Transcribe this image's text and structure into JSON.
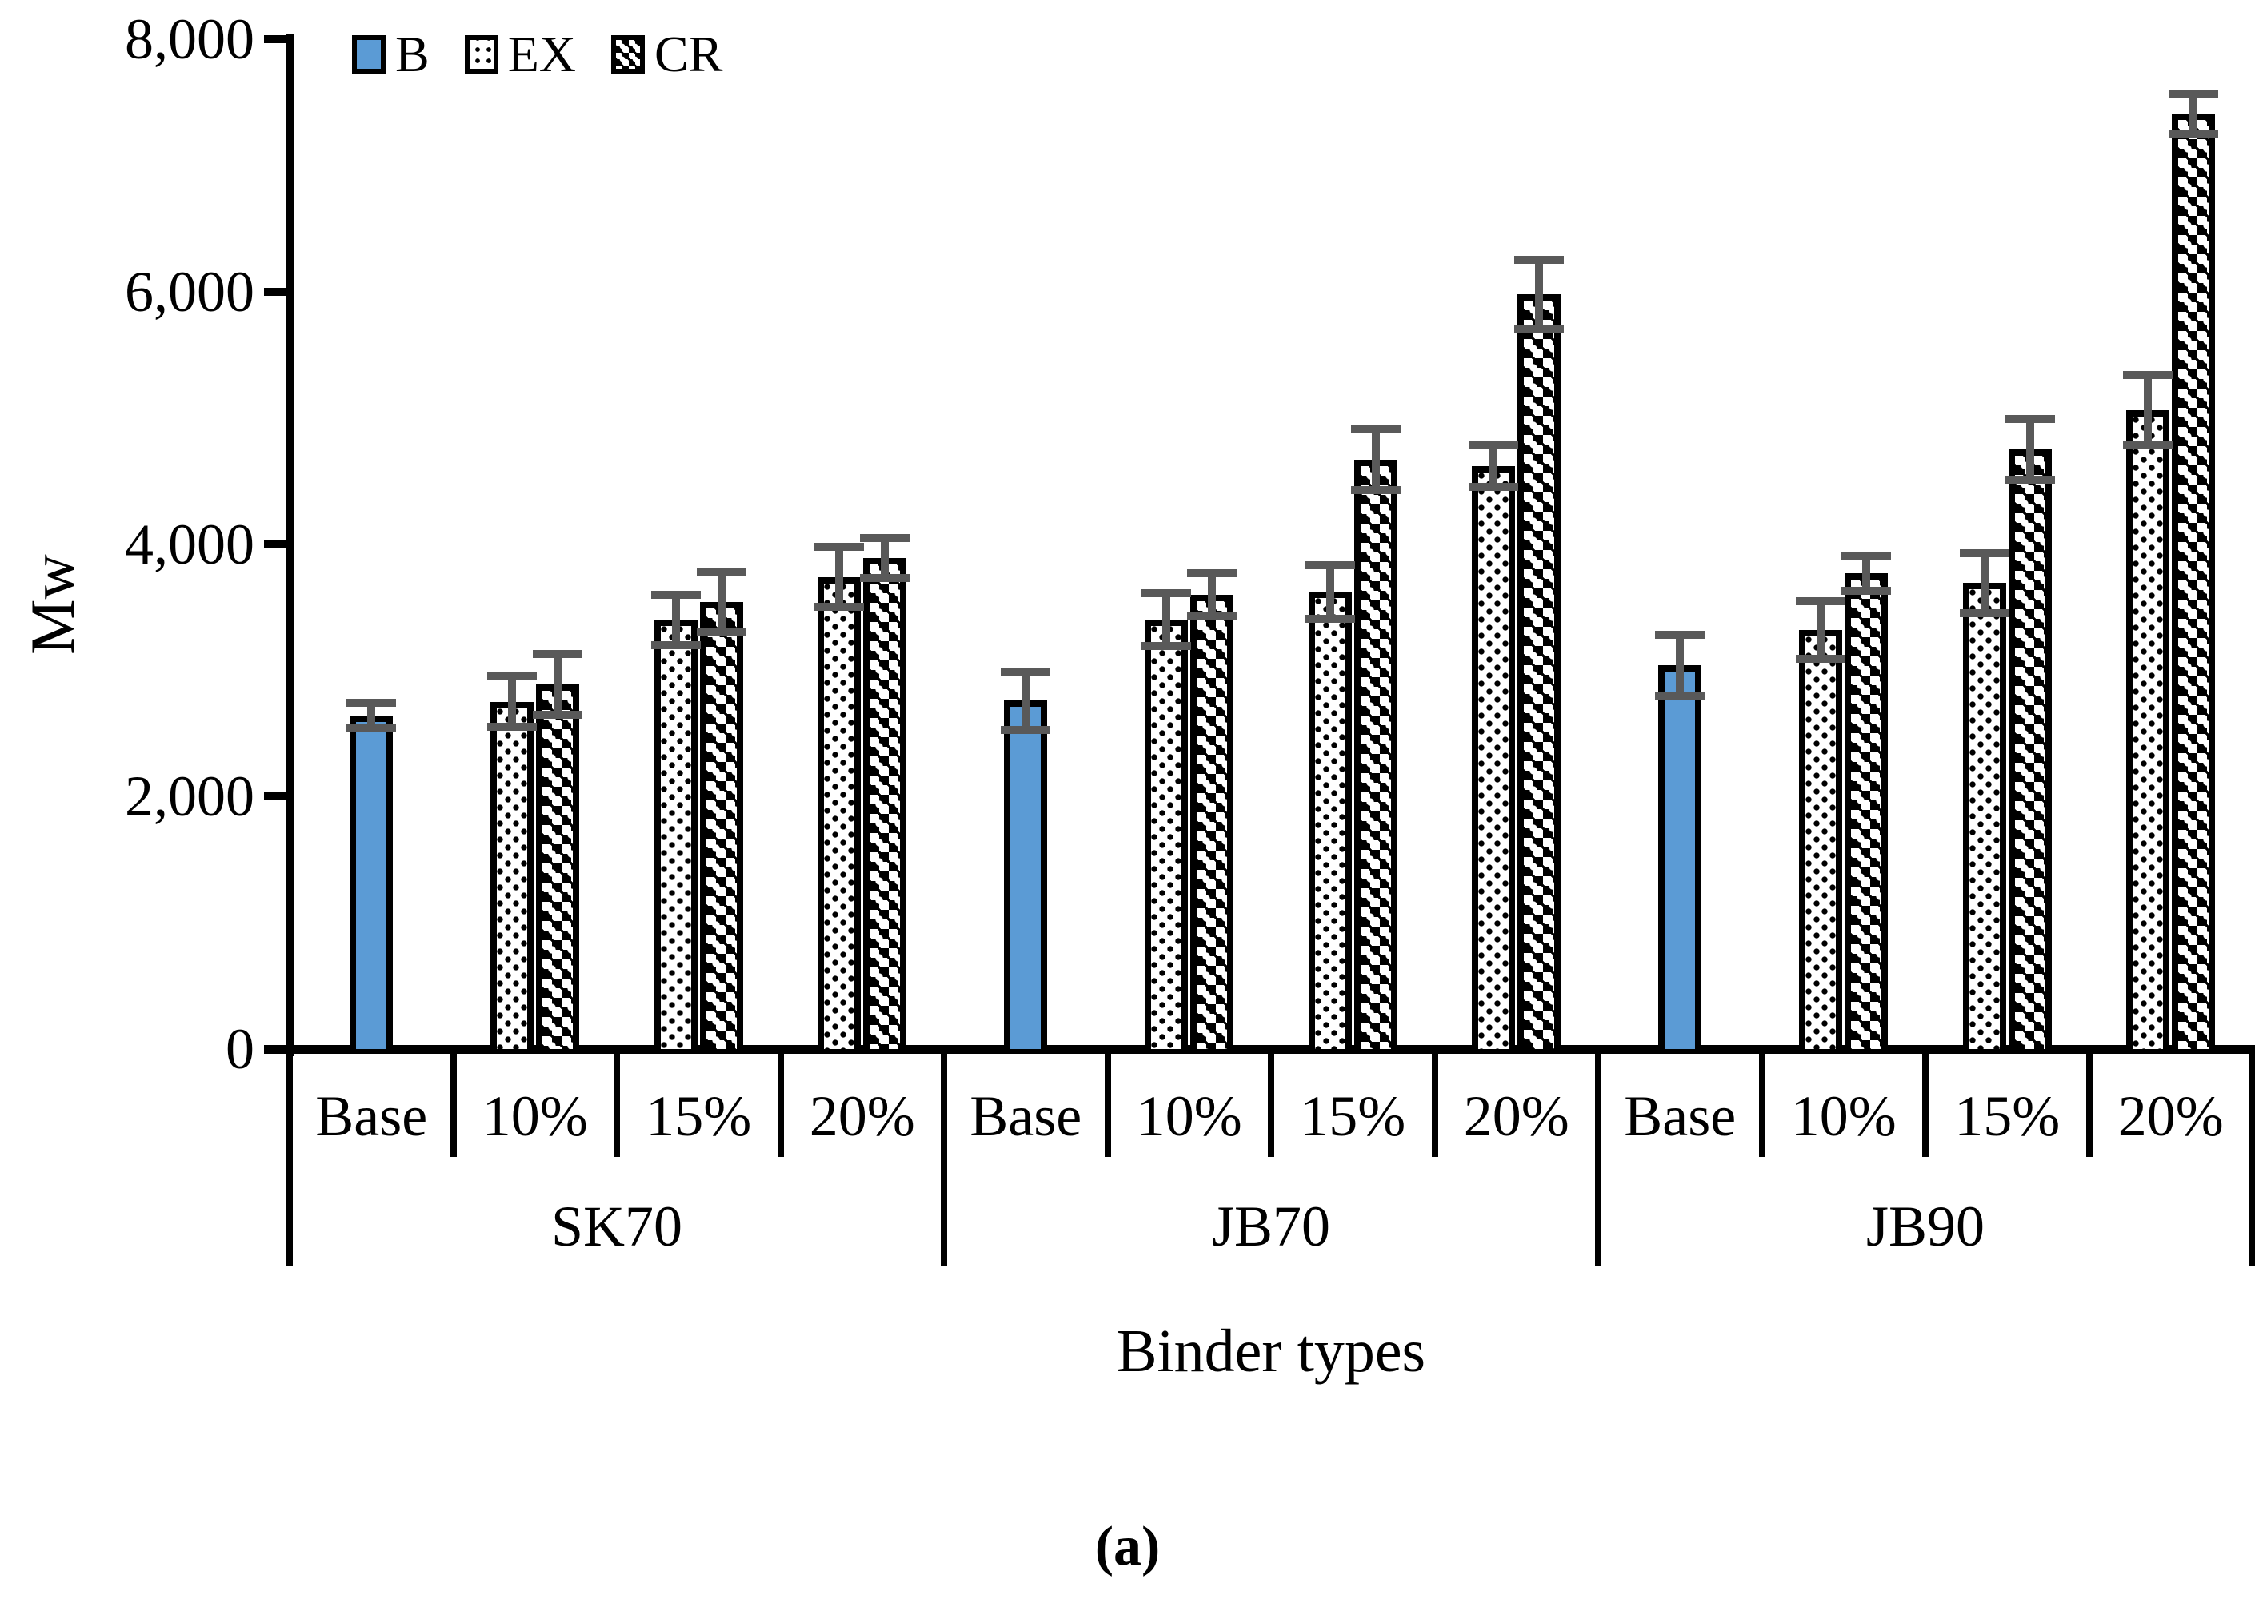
{
  "figure": {
    "caption": "(a)"
  },
  "chart_data": {
    "type": "bar",
    "title": "",
    "ylabel": "Mw",
    "xlabel": "Binder types",
    "ylim": [
      0,
      8000
    ],
    "yticks": [
      0,
      2000,
      4000,
      6000,
      8000
    ],
    "ytick_labels": [
      "0",
      "2,000",
      "4,000",
      "6,000",
      "8,000"
    ],
    "grid": false,
    "legend_position": "top-left",
    "error_bar_color": "#595959",
    "bar_blue": "#5B9BD5",
    "series": [
      {
        "name": "B",
        "style": "b-solid"
      },
      {
        "name": "EX",
        "style": "b-dots"
      },
      {
        "name": "CR",
        "style": "b-checker"
      }
    ],
    "groups": [
      {
        "label": "SK70",
        "categories": [
          {
            "label": "Base",
            "bars": [
              {
                "series": "B",
                "value": 2640,
                "error": 100
              }
            ]
          },
          {
            "label": "10%",
            "bars": [
              {
                "series": "EX",
                "value": 2750,
                "error": 200
              },
              {
                "series": "CR",
                "value": 2890,
                "error": 240
              }
            ]
          },
          {
            "label": "15%",
            "bars": [
              {
                "series": "EX",
                "value": 3400,
                "error": 200
              },
              {
                "series": "CR",
                "value": 3540,
                "error": 240
              }
            ]
          },
          {
            "label": "20%",
            "bars": [
              {
                "series": "EX",
                "value": 3740,
                "error": 240
              },
              {
                "series": "CR",
                "value": 3890,
                "error": 160
              }
            ]
          }
        ]
      },
      {
        "label": "JB70",
        "categories": [
          {
            "label": "Base",
            "bars": [
              {
                "series": "B",
                "value": 2760,
                "error": 230
              }
            ]
          },
          {
            "label": "10%",
            "bars": [
              {
                "series": "EX",
                "value": 3400,
                "error": 210
              },
              {
                "series": "CR",
                "value": 3600,
                "error": 170
              }
            ]
          },
          {
            "label": "15%",
            "bars": [
              {
                "series": "EX",
                "value": 3620,
                "error": 210
              },
              {
                "series": "CR",
                "value": 4670,
                "error": 240
              }
            ]
          },
          {
            "label": "20%",
            "bars": [
              {
                "series": "EX",
                "value": 4620,
                "error": 170
              },
              {
                "series": "CR",
                "value": 5980,
                "error": 270
              }
            ]
          }
        ]
      },
      {
        "label": "JB90",
        "categories": [
          {
            "label": "Base",
            "bars": [
              {
                "series": "B",
                "value": 3040,
                "error": 240
              }
            ]
          },
          {
            "label": "10%",
            "bars": [
              {
                "series": "EX",
                "value": 3320,
                "error": 230
              },
              {
                "series": "CR",
                "value": 3770,
                "error": 140
              }
            ]
          },
          {
            "label": "15%",
            "bars": [
              {
                "series": "EX",
                "value": 3690,
                "error": 240
              },
              {
                "series": "CR",
                "value": 4750,
                "error": 240
              }
            ]
          },
          {
            "label": "20%",
            "bars": [
              {
                "series": "EX",
                "value": 5060,
                "error": 280
              },
              {
                "series": "CR",
                "value": 7410,
                "error": 160
              }
            ]
          }
        ]
      }
    ]
  }
}
